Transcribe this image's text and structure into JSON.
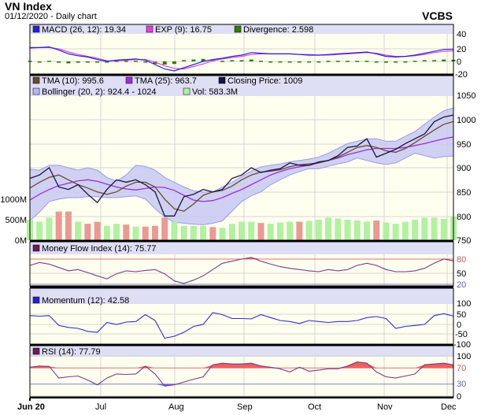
{
  "header": {
    "title": "VN Index",
    "subtitle": "01/12/2020 - Daily chart",
    "brand": "VCBS"
  },
  "colors": {
    "legend_band": "#dedef5",
    "plot_bg": "#fffff0",
    "grid": "#d4d4d4",
    "macd": "#2424c8",
    "exp": "#e040e0",
    "divergence": "#2e7d0a",
    "tma10": "#6b4a2a",
    "tma25": "#9b30d8",
    "close": "#141440",
    "bollinger_fill": "#c8c8f2",
    "bollinger_line": "#9a9ae6",
    "vol_up": "#b2f0a2",
    "vol_down": "#e99a94",
    "osc_line": "#7a3a8a",
    "momentum": "#3030c0",
    "overbought": "#f06060",
    "oversold_fill": "#6060f0",
    "ob_line": "#e07070",
    "os_line": "#8080d0"
  },
  "chart_data": [
    {
      "type": "line",
      "panel": "MACD",
      "legend": [
        "MACD (26, 12): 19.34",
        "EXP (9): 16.75",
        "Divergence: 2.598"
      ],
      "y_ticks": [
        "40",
        "20",
        "0",
        "-20"
      ],
      "series": [
        {
          "name": "MACD (26, 12)",
          "values": [
            22,
            22,
            23,
            18,
            12,
            9,
            7,
            3,
            0,
            2,
            3,
            4,
            2,
            -5,
            -12,
            -15,
            -10,
            -5,
            0,
            3,
            5,
            8,
            10,
            14,
            13,
            12,
            12,
            12,
            11,
            10,
            10,
            11,
            12,
            13,
            14,
            15,
            12,
            8,
            7,
            8,
            10,
            13,
            16,
            19,
            19.34
          ]
        },
        {
          "name": "EXP (9)",
          "values": [
            21,
            22,
            22,
            20,
            15,
            11,
            8,
            5,
            1,
            1,
            2,
            3,
            3,
            -1,
            -7,
            -11,
            -12,
            -8,
            -4,
            1,
            4,
            6,
            8,
            11,
            12,
            12,
            12,
            12,
            11,
            11,
            10,
            10,
            11,
            12,
            13,
            14,
            13,
            10,
            8,
            8,
            9,
            11,
            14,
            16,
            16.75
          ]
        }
      ]
    },
    {
      "type": "line",
      "panel": "Price",
      "legend": [
        "TMA (10): 995.6",
        "TMA (25): 963.7",
        "Closing Price: 1009",
        "Bollinger (20, 2): 924.4 - 1024",
        "Vol: 583.3M"
      ],
      "y_ticks": [
        "1050",
        "1000",
        "950",
        "900",
        "850",
        "800",
        "750"
      ],
      "ylim": [
        750,
        1050
      ],
      "volume_ticks": [
        "1000M",
        "500M",
        "0M"
      ],
      "series": [
        {
          "name": "Closing Price",
          "values": [
            878,
            885,
            900,
            860,
            855,
            865,
            845,
            828,
            855,
            875,
            870,
            875,
            865,
            850,
            800,
            800,
            840,
            845,
            855,
            850,
            855,
            878,
            885,
            900,
            890,
            895,
            898,
            910,
            905,
            905,
            912,
            915,
            925,
            942,
            945,
            960,
            922,
            930,
            938,
            950,
            960,
            970,
            995,
            1005,
            1009
          ]
        },
        {
          "name": "TMA (10)",
          "values": [
            858,
            870,
            880,
            885,
            875,
            865,
            858,
            850,
            845,
            850,
            862,
            870,
            870,
            860,
            835,
            815,
            810,
            825,
            843,
            850,
            853,
            862,
            875,
            885,
            891,
            893,
            896,
            902,
            906,
            908,
            910,
            915,
            922,
            932,
            942,
            946,
            942,
            935,
            932,
            940,
            952,
            965,
            978,
            990,
            995.6
          ]
        },
        {
          "name": "TMA (25)",
          "values": [
            833,
            845,
            855,
            863,
            868,
            873,
            875,
            872,
            866,
            860,
            856,
            854,
            857,
            860,
            859,
            853,
            843,
            833,
            830,
            832,
            838,
            847,
            855,
            865,
            875,
            885,
            892,
            898,
            902,
            905,
            910,
            915,
            920,
            927,
            932,
            937,
            940,
            940,
            940,
            942,
            946,
            950,
            955,
            960,
            963.7
          ]
        },
        {
          "name": "Bollinger upper",
          "values": [
            897,
            895,
            905,
            905,
            900,
            895,
            900,
            895,
            880,
            872,
            885,
            905,
            903,
            895,
            880,
            870,
            860,
            852,
            850,
            850,
            860,
            870,
            882,
            893,
            902,
            905,
            908,
            912,
            915,
            918,
            922,
            930,
            940,
            950,
            955,
            960,
            960,
            955,
            955,
            965,
            975,
            990,
            1005,
            1018,
            1024
          ]
        },
        {
          "name": "Bollinger lower",
          "values": [
            790,
            808,
            830,
            835,
            838,
            838,
            840,
            840,
            838,
            838,
            840,
            842,
            835,
            815,
            798,
            787,
            785,
            783,
            782,
            785,
            790,
            810,
            830,
            842,
            850,
            865,
            875,
            885,
            892,
            898,
            898,
            903,
            908,
            912,
            920,
            915,
            910,
            907,
            910,
            920,
            930,
            925,
            920,
            923,
            924.4
          ]
        },
        {
          "name": "Vol",
          "unit": "M",
          "values": [
            500,
            450,
            550,
            700,
            700,
            450,
            400,
            450,
            350,
            400,
            380,
            330,
            330,
            350,
            550,
            450,
            350,
            350,
            350,
            320,
            300,
            400,
            450,
            450,
            420,
            400,
            430,
            450,
            450,
            470,
            500,
            550,
            530,
            500,
            480,
            450,
            480,
            430,
            400,
            450,
            500,
            550,
            550,
            520,
            583.3
          ]
        }
      ]
    },
    {
      "type": "line",
      "panel": "Money Flow Index",
      "legend": [
        "Money Flow Index (14): 75.77"
      ],
      "y_ticks": [
        "80",
        "50",
        "20"
      ],
      "series": [
        {
          "name": "Money Flow Index (14)",
          "values": [
            65,
            72,
            68,
            60,
            52,
            55,
            48,
            40,
            33,
            45,
            52,
            50,
            53,
            55,
            45,
            28,
            22,
            30,
            40,
            55,
            70,
            75,
            80,
            84,
            75,
            68,
            62,
            58,
            55,
            52,
            50,
            55,
            52,
            55,
            65,
            70,
            65,
            55,
            50,
            50,
            52,
            58,
            70,
            80,
            75.77
          ]
        }
      ]
    },
    {
      "type": "line",
      "panel": "Momentum",
      "legend": [
        "Momentum (12): 42.58"
      ],
      "y_ticks": [
        "100",
        "50",
        "0",
        "-50",
        "-100"
      ],
      "series": [
        {
          "name": "Momentum (12)",
          "values": [
            45,
            42,
            45,
            -5,
            -15,
            -20,
            -35,
            -40,
            10,
            0,
            12,
            15,
            50,
            20,
            -70,
            -60,
            -40,
            -10,
            0,
            60,
            50,
            30,
            30,
            28,
            50,
            35,
            20,
            15,
            5,
            20,
            15,
            10,
            15,
            15,
            20,
            35,
            40,
            30,
            -20,
            -10,
            -5,
            0,
            45,
            55,
            42.58
          ]
        }
      ]
    },
    {
      "type": "line",
      "panel": "RSI",
      "legend": [
        "RSI (14): 77.79"
      ],
      "y_ticks": [
        "100",
        "70",
        "30",
        "0"
      ],
      "series": [
        {
          "name": "RSI (14)",
          "values": [
            72,
            75,
            74,
            45,
            48,
            50,
            40,
            28,
            45,
            55,
            54,
            55,
            75,
            55,
            25,
            28,
            35,
            42,
            48,
            78,
            82,
            80,
            80,
            82,
            75,
            72,
            68,
            60,
            72,
            62,
            65,
            68,
            68,
            75,
            85,
            82,
            60,
            48,
            45,
            50,
            55,
            78,
            80,
            82,
            77.79
          ]
        }
      ]
    }
  ],
  "x_axis": {
    "ticks": [
      "Jun 20",
      "Jul",
      "Aug",
      "Sep",
      "Oct",
      "Nov",
      "Dec"
    ]
  }
}
